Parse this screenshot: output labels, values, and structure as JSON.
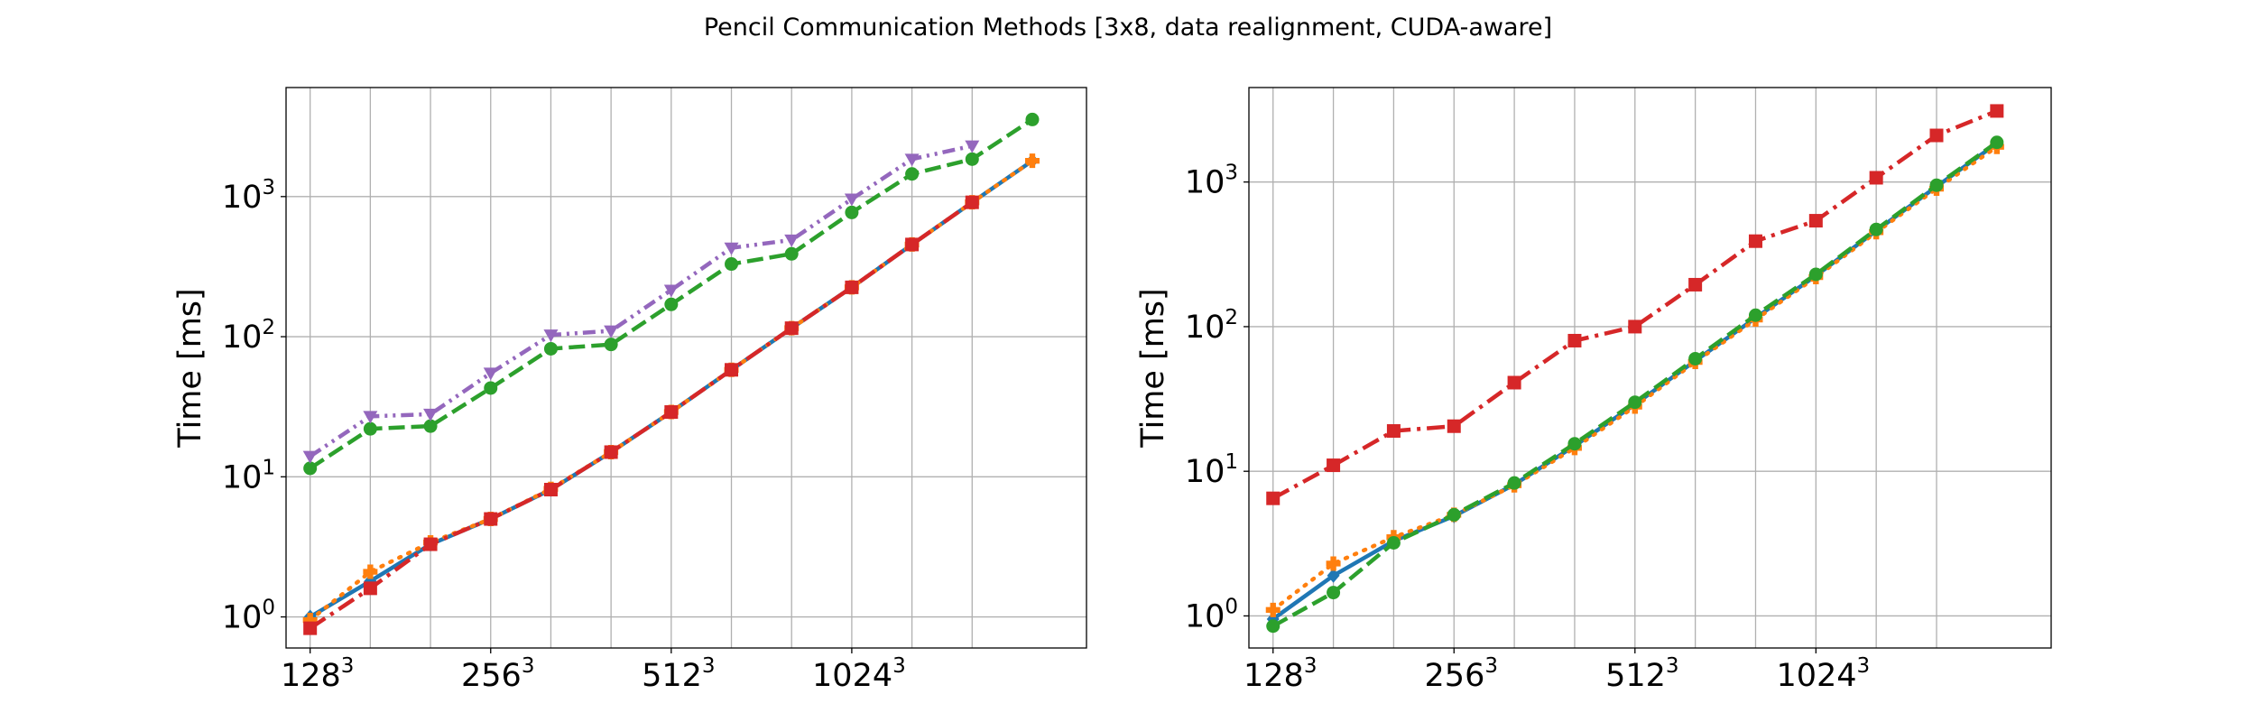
{
  "figure": {
    "title": "Pencil Communication Methods [3x8, data realignment, CUDA-aware]"
  },
  "chart_data": [
    {
      "type": "line",
      "ylabel": "Time [ms]",
      "xlabel": "",
      "yscale": "log",
      "ylim": [
        0.6,
        6000
      ],
      "xlim": [
        -0.4,
        12.9
      ],
      "grid": true,
      "x_ticks": [
        {
          "pos": 0,
          "base": "128",
          "exp": "3"
        },
        {
          "pos": 3,
          "base": "256",
          "exp": "3"
        },
        {
          "pos": 6,
          "base": "512",
          "exp": "3"
        },
        {
          "pos": 9,
          "base": "1024",
          "exp": "3"
        }
      ],
      "y_ticks": [
        {
          "value": 1,
          "base": "10",
          "exp": "0"
        },
        {
          "value": 10,
          "base": "10",
          "exp": "1"
        },
        {
          "value": 100,
          "base": "10",
          "exp": "2"
        },
        {
          "value": 1000,
          "base": "10",
          "exp": "3"
        }
      ],
      "x_gridlines": [
        0,
        1,
        2,
        3,
        4,
        5,
        6,
        7,
        8,
        9,
        10,
        11
      ],
      "series": [
        {
          "color": "#1f77b4",
          "dash": "solid",
          "marker": "diamond",
          "x": [
            0,
            1,
            2,
            3,
            4,
            5,
            6,
            7,
            8,
            9,
            10,
            11,
            12
          ],
          "values": [
            1.0,
            1.8,
            3.3,
            5.0,
            8.1,
            15.0,
            29.0,
            58.0,
            115.0,
            225.0,
            455.0,
            910.0,
            1800.0
          ]
        },
        {
          "color": "#ff7f0e",
          "dash": "dotted",
          "marker": "plus",
          "x": [
            0,
            1,
            2,
            3,
            4,
            5,
            6,
            7,
            8,
            9,
            10,
            11,
            12
          ],
          "values": [
            0.95,
            2.1,
            3.4,
            5.0,
            8.2,
            15.0,
            29.0,
            58.0,
            115.0,
            225.0,
            455.0,
            910.0,
            1800.0
          ]
        },
        {
          "color": "#2ca02c",
          "dash": "dashed",
          "marker": "circle",
          "x": [
            0,
            1,
            2,
            3,
            4,
            5,
            6,
            7,
            8,
            9,
            10,
            11,
            12
          ],
          "values": [
            11.5,
            22.0,
            23.0,
            43.0,
            82.0,
            88.0,
            170.0,
            330.0,
            390.0,
            770.0,
            1450.0,
            1850.0,
            3550.0
          ]
        },
        {
          "color": "#d62728",
          "dash": "dashdot",
          "marker": "square",
          "x": [
            0,
            1,
            2,
            3,
            4,
            5,
            6,
            7,
            8,
            9,
            10,
            11
          ],
          "values": [
            0.83,
            1.6,
            3.3,
            5.0,
            8.1,
            15.0,
            29.0,
            58.0,
            115.0,
            225.0,
            455.0,
            910.0
          ]
        },
        {
          "color": "#9467bd",
          "dash": "dashdotdot",
          "marker": "triangle-down",
          "x": [
            0,
            1,
            2,
            3,
            4,
            5,
            6,
            7,
            8,
            9,
            10,
            11
          ],
          "values": [
            14.0,
            27.0,
            28.0,
            55.0,
            103.0,
            110.0,
            215.0,
            430.0,
            490.0,
            960.0,
            1850.0,
            2300.0
          ]
        }
      ]
    },
    {
      "type": "line",
      "ylabel": "Time [ms]",
      "xlabel": "",
      "yscale": "log",
      "ylim": [
        0.6,
        4500
      ],
      "xlim": [
        -0.4,
        12.9
      ],
      "grid": true,
      "x_ticks": [
        {
          "pos": 0,
          "base": "128",
          "exp": "3"
        },
        {
          "pos": 3,
          "base": "256",
          "exp": "3"
        },
        {
          "pos": 6,
          "base": "512",
          "exp": "3"
        },
        {
          "pos": 9,
          "base": "1024",
          "exp": "3"
        }
      ],
      "y_ticks": [
        {
          "value": 1,
          "base": "10",
          "exp": "0"
        },
        {
          "value": 10,
          "base": "10",
          "exp": "1"
        },
        {
          "value": 100,
          "base": "10",
          "exp": "2"
        },
        {
          "value": 1000,
          "base": "10",
          "exp": "3"
        }
      ],
      "x_gridlines": [
        0,
        1,
        2,
        3,
        4,
        5,
        6,
        7,
        8,
        9,
        10,
        11
      ],
      "series": [
        {
          "color": "#1f77b4",
          "dash": "solid",
          "marker": "diamond",
          "x": [
            0,
            1,
            2,
            3,
            4,
            5,
            6,
            7,
            8,
            9,
            10,
            11,
            12
          ],
          "values": [
            0.95,
            1.9,
            3.3,
            4.9,
            8.1,
            15.0,
            29.0,
            58.0,
            115.0,
            225.0,
            460.0,
            930.0,
            1850.0
          ]
        },
        {
          "color": "#ff7f0e",
          "dash": "dotted",
          "marker": "plus",
          "x": [
            0,
            1,
            2,
            3,
            4,
            5,
            6,
            7,
            8,
            9,
            10,
            11,
            12
          ],
          "values": [
            1.1,
            2.3,
            3.5,
            5.0,
            8.0,
            14.5,
            28.0,
            57.0,
            112.0,
            220.0,
            450.0,
            900.0,
            1750.0
          ]
        },
        {
          "color": "#d62728",
          "dash": "dashdot",
          "marker": "square",
          "x": [
            0,
            1,
            2,
            3,
            4,
            5,
            6,
            7,
            8,
            9,
            10,
            11,
            12
          ],
          "values": [
            6.5,
            11.0,
            19.0,
            20.5,
            41.0,
            80.0,
            100.0,
            195.0,
            390.0,
            540.0,
            1070.0,
            2100.0,
            3100.0
          ]
        },
        {
          "color": "#2ca02c",
          "dash": "dashed",
          "marker": "circle",
          "x": [
            0,
            1,
            2,
            3,
            4,
            5,
            6,
            7,
            8,
            9,
            10,
            11,
            12
          ],
          "values": [
            0.85,
            1.45,
            3.2,
            5.0,
            8.3,
            15.5,
            30.0,
            60.0,
            120.0,
            230.0,
            470.0,
            950.0,
            1880.0
          ]
        }
      ]
    }
  ]
}
